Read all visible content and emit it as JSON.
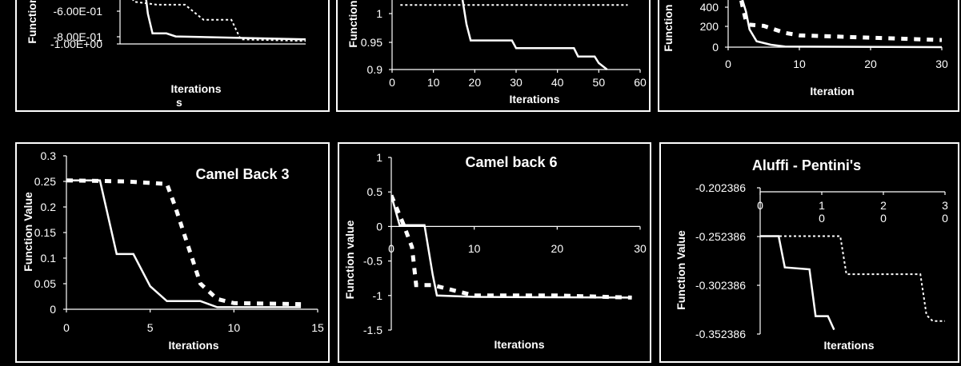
{
  "chart_data": [
    {
      "type": "line",
      "title": "",
      "xlabel": "Iterations",
      "ylabel": "Function",
      "yticks": [
        "-6.00E-01",
        "-8.00E-01",
        "-1.00E+00"
      ],
      "ylim": [
        -1.0,
        -0.55
      ],
      "xlim": [
        0,
        20
      ],
      "series": [
        {
          "style": "solid",
          "x": [
            2.5,
            3,
            3.5,
            5,
            6,
            20
          ],
          "y": [
            -0.55,
            -0.8,
            -0.93,
            -0.93,
            -0.95,
            -0.97
          ]
        },
        {
          "style": "dotted",
          "x": [
            0.5,
            1,
            1.5,
            4,
            7,
            9,
            12,
            13,
            20
          ],
          "y": [
            -0.55,
            -0.66,
            -0.72,
            -0.74,
            -0.74,
            -0.84,
            -0.84,
            -0.97,
            -0.98
          ]
        }
      ]
    },
    {
      "type": "line",
      "title": "",
      "xlabel": "Iterations",
      "ylabel": "Function",
      "yticks": [
        "1",
        "0.95",
        "0.9"
      ],
      "xticks": [
        "0",
        "10",
        "20",
        "30",
        "40",
        "50",
        "60"
      ],
      "ylim": [
        0.9,
        1.02
      ],
      "xlim": [
        0,
        60
      ],
      "series": [
        {
          "style": "solid",
          "x": [
            0,
            2,
            2,
            17,
            18,
            19,
            29,
            30,
            44,
            45,
            49,
            50,
            52
          ],
          "y": [
            1.02,
            1.01,
            1.01,
            1.01,
            0.97,
            0.945,
            0.945,
            0.933,
            0.933,
            0.92,
            0.92,
            0.91,
            0.9
          ]
        },
        {
          "style": "dotted",
          "x": [
            2,
            57
          ],
          "y": [
            1.0,
            1.0
          ]
        }
      ]
    },
    {
      "type": "line",
      "title": "",
      "xlabel": "Iteration",
      "ylabel": "Function",
      "yticks": [
        "400",
        "200",
        "0"
      ],
      "xticks": [
        "0",
        "10",
        "20",
        "30"
      ],
      "ylim": [
        0,
        500
      ],
      "xlim": [
        0,
        30
      ],
      "series": [
        {
          "style": "solid",
          "x": [
            1.5,
            2.5,
            3,
            4,
            6,
            8,
            30
          ],
          "y": [
            500,
            300,
            150,
            50,
            20,
            5,
            0
          ]
        },
        {
          "style": "dashed",
          "x": [
            1.5,
            2,
            2.5,
            3,
            5,
            7,
            8,
            10,
            15,
            20,
            25,
            30
          ],
          "y": [
            500,
            350,
            220,
            190,
            180,
            140,
            120,
            100,
            90,
            80,
            70,
            60
          ]
        }
      ]
    },
    {
      "type": "line",
      "title": "Camel Back 3",
      "xlabel": "Iterations",
      "ylabel": "Function Value",
      "yticks": [
        "0.3",
        "0.25",
        "0.2",
        "0.15",
        "0.1",
        "0.05",
        "0"
      ],
      "xticks": [
        "0",
        "5",
        "10",
        "15"
      ],
      "ylim": [
        0,
        0.3
      ],
      "xlim": [
        0,
        15
      ],
      "series": [
        {
          "style": "solid",
          "x": [
            0,
            2,
            3,
            4,
            5,
            6,
            8,
            9,
            14
          ],
          "y": [
            0.252,
            0.252,
            0.108,
            0.108,
            0.045,
            0.016,
            0.016,
            0.004,
            0.004
          ]
        },
        {
          "style": "dashed",
          "x": [
            0,
            3.5,
            6,
            6.5,
            8,
            9,
            10,
            14
          ],
          "y": [
            0.252,
            0.25,
            0.245,
            0.2,
            0.05,
            0.02,
            0.012,
            0.01
          ]
        }
      ]
    },
    {
      "type": "line",
      "title": "Camel back 6",
      "xlabel": "Iterations",
      "ylabel": "Function value",
      "yticks": [
        "1",
        "0.5",
        "0",
        "-0.5",
        "-1",
        "-1.5"
      ],
      "xticks": [
        "0",
        "10",
        "20",
        "30"
      ],
      "ylim": [
        -1.5,
        1
      ],
      "xlim": [
        0,
        30
      ],
      "series": [
        {
          "style": "solid",
          "x": [
            0,
            1,
            4,
            5,
            5.5,
            10,
            29
          ],
          "y": [
            0.45,
            0.02,
            0.02,
            -0.7,
            -1.0,
            -1.02,
            -1.03
          ]
        },
        {
          "style": "dashed",
          "x": [
            0,
            1.5,
            2.5,
            3,
            5,
            10,
            20,
            29
          ],
          "y": [
            0.45,
            0.02,
            -0.3,
            -0.85,
            -0.85,
            -1.0,
            -1.0,
            -1.03
          ]
        }
      ]
    },
    {
      "type": "line",
      "title": "Aluffi - Pentini's",
      "xlabel": "Iterations",
      "ylabel": "Function Value",
      "yticks": [
        "-0.202386",
        "-0.252386",
        "-0.302386",
        "-0.352386"
      ],
      "xticks": [
        "0",
        "1\n0",
        "2\n0",
        "3\n0"
      ],
      "ylim": [
        -0.352386,
        -0.202386
      ],
      "xlim": [
        0,
        30
      ],
      "series": [
        {
          "style": "solid",
          "x": [
            0,
            3,
            4,
            8,
            9,
            10,
            11,
            12
          ],
          "y": [
            -0.252,
            -0.252,
            -0.284,
            -0.286,
            -0.334,
            -0.334,
            -0.334,
            -0.348
          ]
        },
        {
          "style": "dotted",
          "x": [
            0,
            13,
            14,
            26,
            27,
            28,
            30
          ],
          "y": [
            -0.252,
            -0.252,
            -0.291,
            -0.291,
            -0.333,
            -0.339,
            -0.339
          ]
        }
      ]
    }
  ]
}
